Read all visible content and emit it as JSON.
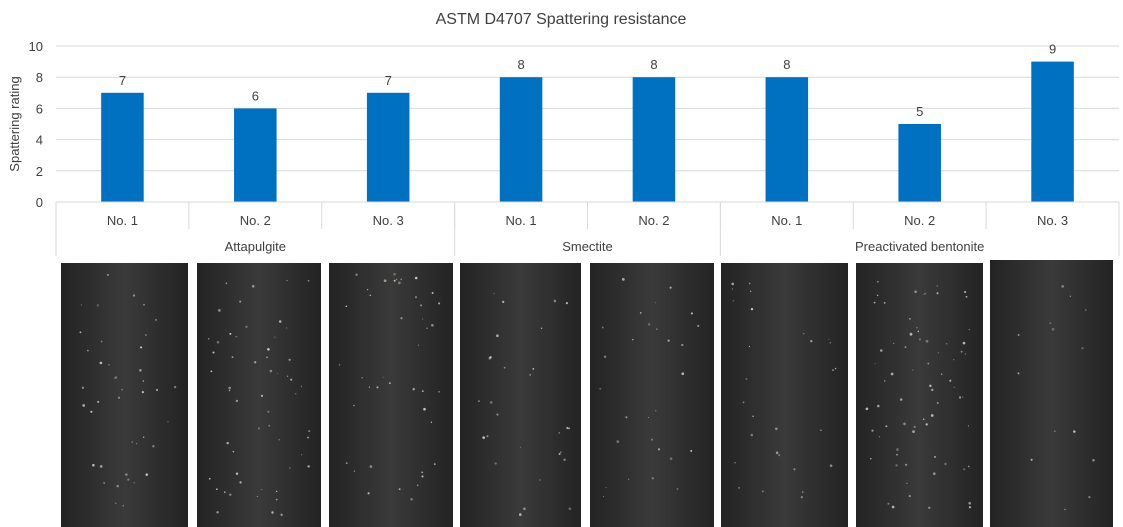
{
  "chart_data": {
    "type": "bar",
    "title": "ASTM D4707 Spattering resistance",
    "ylabel": "Spattering rating",
    "xlabel": "",
    "ylim": [
      0,
      10
    ],
    "yticks": [
      0,
      2,
      4,
      6,
      8,
      10
    ],
    "grid": true,
    "bar_color": "#0070C0",
    "categories": [
      "No. 1",
      "No. 2",
      "No. 3",
      "No. 1",
      "No. 2",
      "No. 1",
      "No. 2",
      "No. 3"
    ],
    "groups": [
      {
        "label": "Attapulgite",
        "count": 3
      },
      {
        "label": "Smectite",
        "count": 2
      },
      {
        "label": "Preactivated bentonite",
        "count": 3
      }
    ],
    "values": [
      7,
      6,
      7,
      8,
      8,
      8,
      5,
      9
    ]
  },
  "photos": {
    "count": 8,
    "description_color": "#2e2e2e"
  }
}
